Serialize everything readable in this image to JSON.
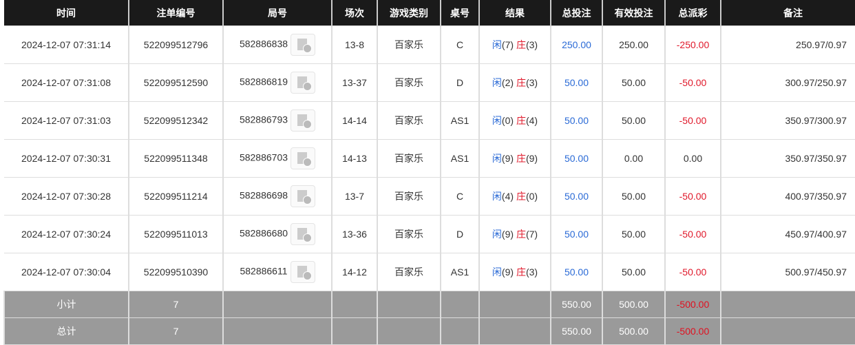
{
  "headers": [
    "时间",
    "注单编号",
    "局号",
    "场次",
    "游戏类别",
    "桌号",
    "结果",
    "总投注",
    "有效投注",
    "总派彩",
    "备注"
  ],
  "rows": [
    {
      "time": "2024-12-07 07:31:14",
      "bet_id": "522099512796",
      "round": "582886838",
      "session": "13-8",
      "game": "百家乐",
      "table": "C",
      "player": "闲",
      "player_n": "(7)",
      "banker": "庄",
      "banker_n": "(3)",
      "total": "250.00",
      "valid": "250.00",
      "payout": "-250.00",
      "remark": "250.97/0.97"
    },
    {
      "time": "2024-12-07 07:31:08",
      "bet_id": "522099512590",
      "round": "582886819",
      "session": "13-37",
      "game": "百家乐",
      "table": "D",
      "player": "闲",
      "player_n": "(2)",
      "banker": "庄",
      "banker_n": "(3)",
      "total": "50.00",
      "valid": "50.00",
      "payout": "-50.00",
      "remark": "300.97/250.97"
    },
    {
      "time": "2024-12-07 07:31:03",
      "bet_id": "522099512342",
      "round": "582886793",
      "session": "14-14",
      "game": "百家乐",
      "table": "AS1",
      "player": "闲",
      "player_n": "(0)",
      "banker": "庄",
      "banker_n": "(4)",
      "total": "50.00",
      "valid": "50.00",
      "payout": "-50.00",
      "remark": "350.97/300.97"
    },
    {
      "time": "2024-12-07 07:30:31",
      "bet_id": "522099511348",
      "round": "582886703",
      "session": "14-13",
      "game": "百家乐",
      "table": "AS1",
      "player": "闲",
      "player_n": "(9)",
      "banker": "庄",
      "banker_n": "(9)",
      "total": "50.00",
      "valid": "0.00",
      "payout": "0.00",
      "remark": "350.97/350.97"
    },
    {
      "time": "2024-12-07 07:30:28",
      "bet_id": "522099511214",
      "round": "582886698",
      "session": "13-7",
      "game": "百家乐",
      "table": "C",
      "player": "闲",
      "player_n": "(4)",
      "banker": "庄",
      "banker_n": "(0)",
      "total": "50.00",
      "valid": "50.00",
      "payout": "-50.00",
      "remark": "400.97/350.97"
    },
    {
      "time": "2024-12-07 07:30:24",
      "bet_id": "522099511013",
      "round": "582886680",
      "session": "13-36",
      "game": "百家乐",
      "table": "D",
      "player": "闲",
      "player_n": "(9)",
      "banker": "庄",
      "banker_n": "(7)",
      "total": "50.00",
      "valid": "50.00",
      "payout": "-50.00",
      "remark": "450.97/400.97"
    },
    {
      "time": "2024-12-07 07:30:04",
      "bet_id": "522099510390",
      "round": "582886611",
      "session": "14-12",
      "game": "百家乐",
      "table": "AS1",
      "player": "闲",
      "player_n": "(9)",
      "banker": "庄",
      "banker_n": "(3)",
      "total": "50.00",
      "valid": "50.00",
      "payout": "-50.00",
      "remark": "500.97/450.97"
    }
  ],
  "summary": [
    {
      "label": "小计",
      "count": "7",
      "total": "550.00",
      "valid": "500.00",
      "payout": "-500.00"
    },
    {
      "label": "总计",
      "count": "7",
      "total": "550.00",
      "valid": "500.00",
      "payout": "-500.00"
    }
  ],
  "colors": {
    "header_bg": "#1a1a1a",
    "player": "#2a6ad6",
    "banker": "#e0182a",
    "summary_bg": "#9a9a9a"
  }
}
